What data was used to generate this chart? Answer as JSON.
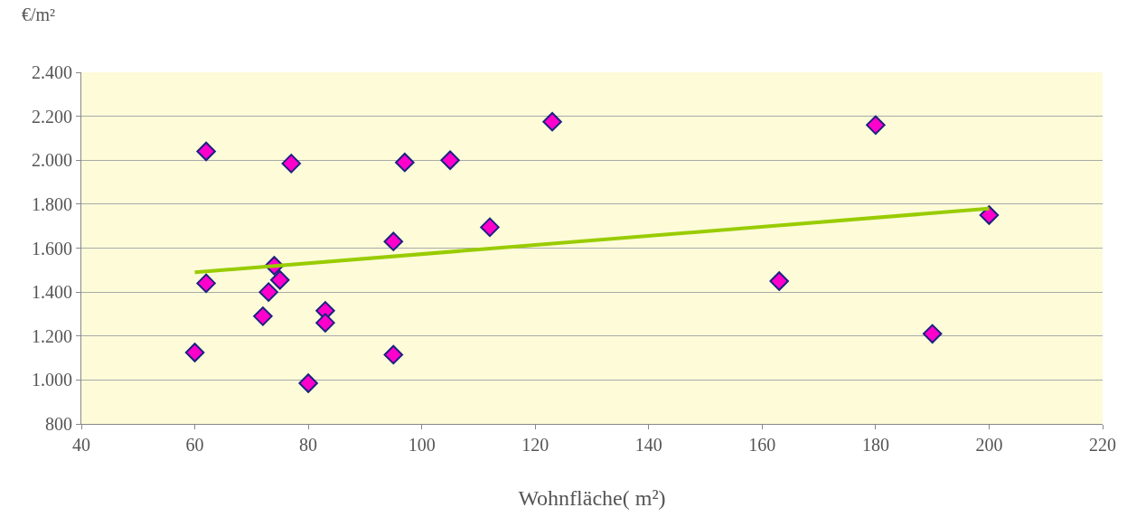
{
  "chart_data": {
    "type": "scatter",
    "xlabel": "Wohnfläche( m²)",
    "ylabel": "€/m²",
    "series": [
      {
        "color": "#ff00cc",
        "marker": "diamond",
        "x": [
          60,
          62,
          62,
          72,
          73,
          74,
          75,
          77,
          80,
          83,
          83,
          95,
          95,
          97,
          105,
          112,
          123,
          163,
          180,
          190,
          200
        ],
        "values": [
          1125,
          2040,
          1440,
          1290,
          1400,
          1520,
          1455,
          1985,
          985,
          1315,
          1260,
          1630,
          1115,
          1990,
          2000,
          1695,
          2175,
          1450,
          2160,
          1210,
          1750
        ]
      },
      {
        "type": "line",
        "color": "#99cc00",
        "marker": "none",
        "x": [
          60,
          200
        ],
        "values": [
          1490,
          1780
        ]
      }
    ],
    "xlim": [
      40,
      220
    ],
    "xticks": [
      40,
      60,
      80,
      100,
      120,
      140,
      160,
      180,
      200,
      220
    ],
    "ylim": [
      800,
      2400
    ],
    "yticks": [
      {
        "value": 800,
        "label": "800"
      },
      {
        "value": 1000,
        "label": "1.000"
      },
      {
        "value": 1200,
        "label": "1.200"
      },
      {
        "value": 1400,
        "label": "1.400"
      },
      {
        "value": 1600,
        "label": "1.600"
      },
      {
        "value": 1800,
        "label": "1.800"
      },
      {
        "value": 2000,
        "label": "2.000"
      },
      {
        "value": 2200,
        "label": "2.200"
      },
      {
        "value": 2400,
        "label": "2.400"
      }
    ],
    "grid": "y",
    "legend": false
  }
}
